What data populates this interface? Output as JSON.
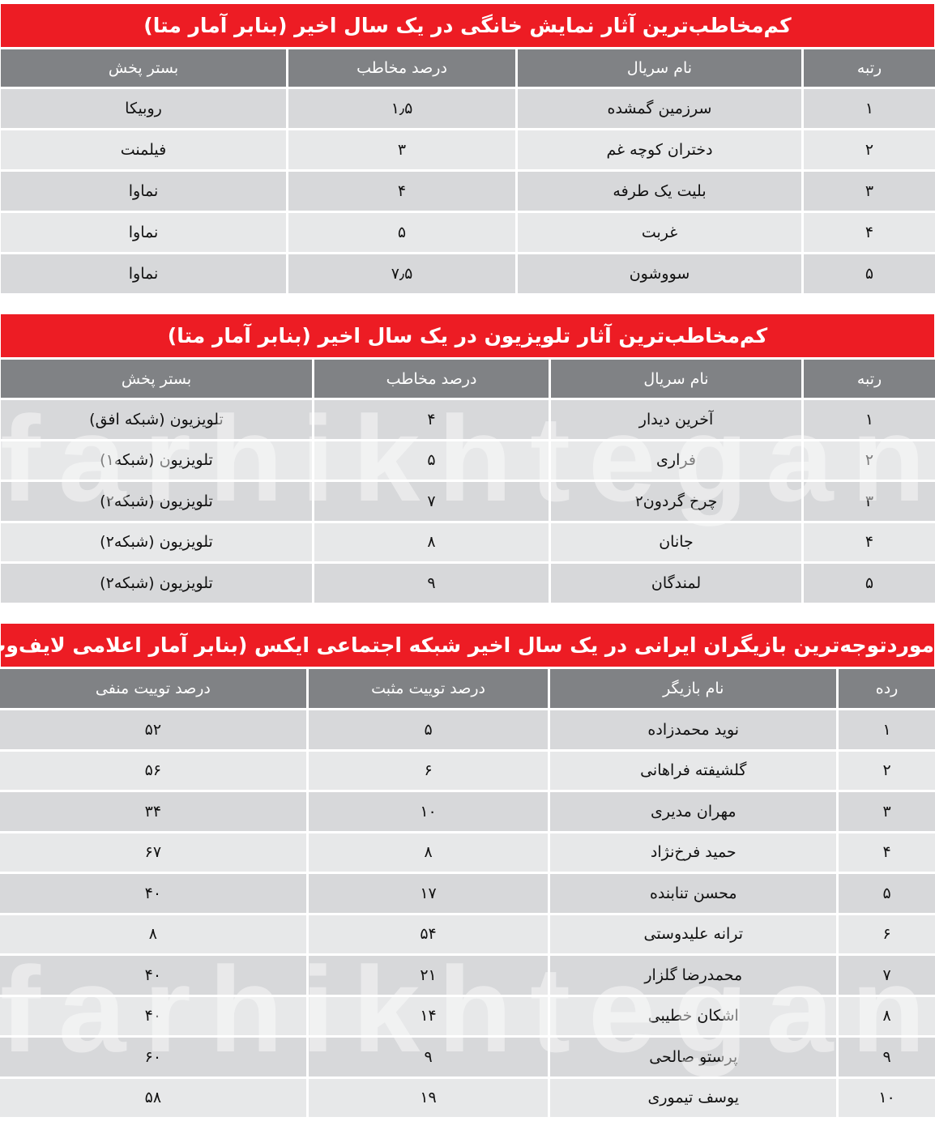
{
  "watermark": "farhikhtegan",
  "colors": {
    "title_bg": "#ed1c24",
    "header_bg": "#808285",
    "row_dark": "#d7d8da",
    "row_light": "#e7e8e9"
  },
  "tables": [
    {
      "title": "کم‌مخاطب‌ترین آثار نمایش خانگی در یک سال اخیر (بنابر آمار متا)",
      "headers": [
        "رتبه",
        "نام سریال",
        "درصد مخاطب",
        "بستر پخش"
      ],
      "rows": [
        [
          "۱",
          "سرزمین گمشده",
          "۱٫۵",
          "روبیکا"
        ],
        [
          "۲",
          "دختران کوچه غم",
          "۳",
          "فیلمنت"
        ],
        [
          "۳",
          "بلیت یک طرفه",
          "۴",
          "نماوا"
        ],
        [
          "۴",
          "غربت",
          "۵",
          "نماوا"
        ],
        [
          "۵",
          "سووشون",
          "۷٫۵",
          "نماوا"
        ]
      ]
    },
    {
      "title": "کم‌مخاطب‌ترین آثار تلویزیون در یک سال اخیر (بنابر آمار متا)",
      "headers": [
        "رتبه",
        "نام سریال",
        "درصد مخاطب",
        "بستر پخش"
      ],
      "rows": [
        [
          "۱",
          "آخرین دیدار",
          "۴",
          "تلویزیون (شبکه افق)"
        ],
        [
          "۲",
          "فراری",
          "۵",
          "تلویزیون (شبکه۱)"
        ],
        [
          "۳",
          "چرخ گردون۲",
          "۷",
          "تلویزیون (شبکه۲)"
        ],
        [
          "۴",
          "جانان",
          "۸",
          "تلویزیون (شبکه۲)"
        ],
        [
          "۵",
          "لمندگان",
          "۹",
          "تلویزیون (شبکه۲)"
        ]
      ]
    },
    {
      "title": "موردتوجه‌ترین بازیگران ایرانی در یک سال اخیر شبکه اجتماعی ایکس (بنابر آمار اعلامی لایف‌وب)",
      "headers": [
        "رده",
        "نام بازیگر",
        "درصد توییت مثبت",
        "درصد توییت منفی"
      ],
      "rows": [
        [
          "۱",
          "نوید محمدزاده",
          "۵",
          "۵۲"
        ],
        [
          "۲",
          "گلشیفته فراهانی",
          "۶",
          "۵۶"
        ],
        [
          "۳",
          "مهران مدیری",
          "۱۰",
          "۳۴"
        ],
        [
          "۴",
          "حمید فرخ‌نژاد",
          "۸",
          "۶۷"
        ],
        [
          "۵",
          "محسن تنابنده",
          "۱۷",
          "۴۰"
        ],
        [
          "۶",
          "ترانه علیدوستی",
          "۵۴",
          "۸"
        ],
        [
          "۷",
          "محمدرضا گلزار",
          "۲۱",
          "۴۰"
        ],
        [
          "۸",
          "اشکان خطیبی",
          "۱۴",
          "۴۰"
        ],
        [
          "۹",
          "پرستو صالحی",
          "۹",
          "۶۰"
        ],
        [
          "۱۰",
          "یوسف تیموری",
          "۱۹",
          "۵۸"
        ]
      ]
    }
  ]
}
